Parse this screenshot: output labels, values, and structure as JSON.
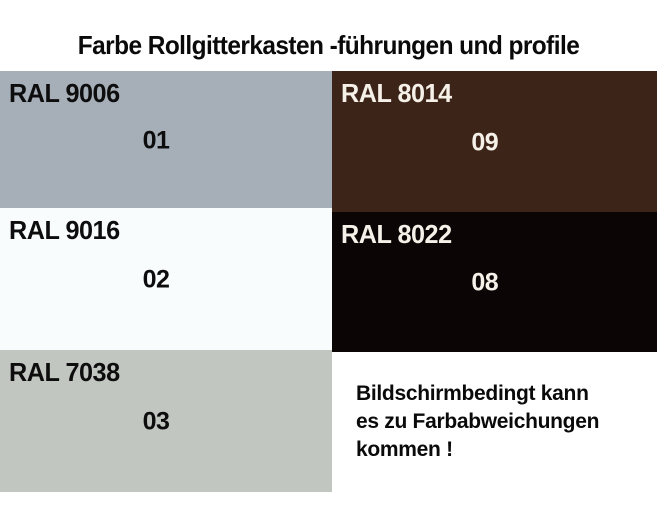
{
  "title": "Farbe Rollgitterkasten -führungen und profile",
  "swatches": [
    {
      "ral": "RAL 9006",
      "code": "01",
      "bg": "#a6aeb8",
      "fg": "#0d0d0d"
    },
    {
      "ral": "RAL 8014",
      "code": "09",
      "bg": "#3d2418",
      "fg": "#f5f0e8"
    },
    {
      "ral": "RAL 9016",
      "code": "02",
      "bg": "#f9fcfc",
      "fg": "#0d0d0d"
    },
    {
      "ral": "RAL 8022",
      "code": "08",
      "bg": "#0b0605",
      "fg": "#f5f0e8"
    },
    {
      "ral": "RAL 7038",
      "code": "03",
      "bg": "#c2c6c1",
      "fg": "#0d0d0d"
    }
  ],
  "note": {
    "text": "Bildschirmbedingt kann\nes zu Farbabweichungen\nkommen !"
  }
}
